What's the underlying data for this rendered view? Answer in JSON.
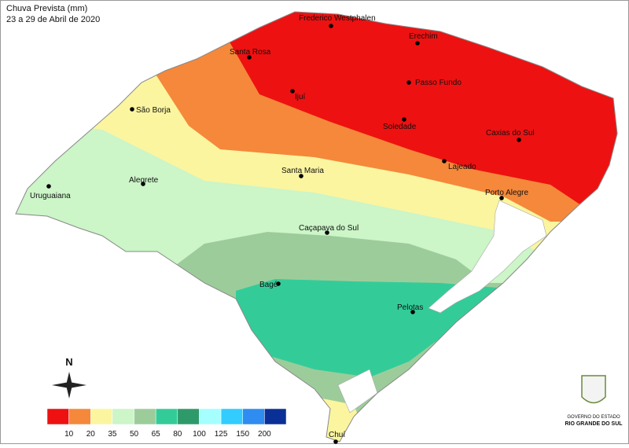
{
  "header": {
    "title": "Chuva Prevista (mm)",
    "subtitle": "23 a 29 de Abril de 2020"
  },
  "cities": [
    {
      "name": "Frederico Westphalen"
    },
    {
      "name": "Erechim"
    },
    {
      "name": "Santa Rosa"
    },
    {
      "name": "Passo Fundo"
    },
    {
      "name": "Ijuí"
    },
    {
      "name": "São Borja"
    },
    {
      "name": "Soledade"
    },
    {
      "name": "Caxias do Sul"
    },
    {
      "name": "Lajeado"
    },
    {
      "name": "Santa Maria"
    },
    {
      "name": "Porto Alegre"
    },
    {
      "name": "Alegrete"
    },
    {
      "name": "Uruguaiana"
    },
    {
      "name": "Caçapava do Sul"
    },
    {
      "name": "Bagé"
    },
    {
      "name": "Pelotas"
    },
    {
      "name": "Chuí"
    }
  ],
  "north": "N",
  "legend": {
    "colors": [
      "#ee1111",
      "#f5883a",
      "#fbf5a0",
      "#ccf5c8",
      "#9dcc9b",
      "#33cc99",
      "#2e9a6a",
      "#a6ffff",
      "#33ccff",
      "#2f8cf0",
      "#0a2f96"
    ],
    "breaks": [
      10,
      20,
      35,
      50,
      65,
      80,
      100,
      125,
      150,
      200
    ]
  },
  "logo": {
    "line1": "GOVERNO DO ESTADO",
    "line2": "RIO GRANDE DO SUL"
  }
}
